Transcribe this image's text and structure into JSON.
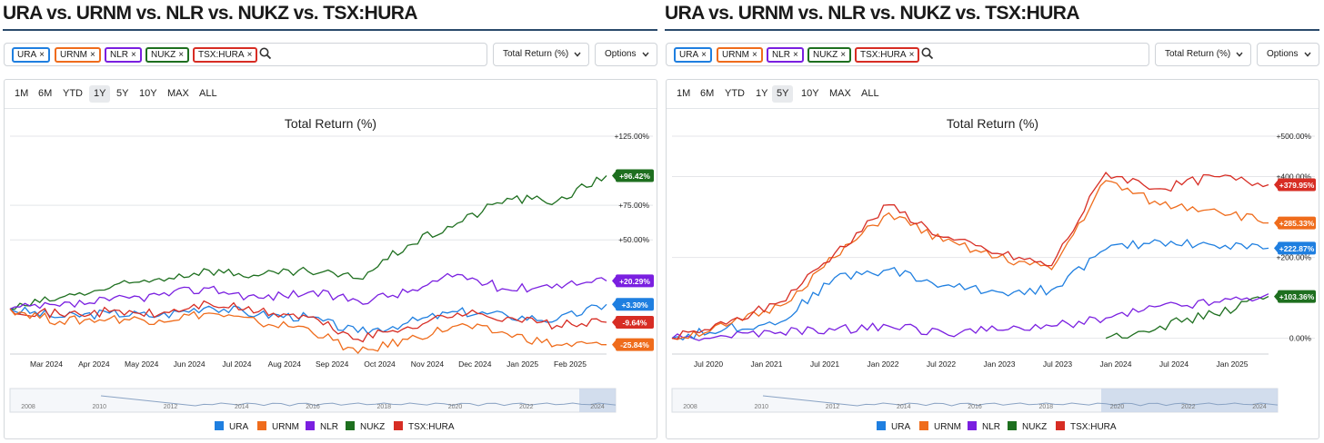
{
  "colors": {
    "URA": "#1f7fe0",
    "URNM": "#ef6c1c",
    "NLR": "#7a1fe0",
    "NUKZ": "#1e6f1f",
    "TSX:HURA": "#d72d24"
  },
  "panels": [
    {
      "title": "URA vs. URNM vs. NLR vs. NUKZ vs. TSX:HURA",
      "chips": [
        "URA",
        "URNM",
        "NLR",
        "NUKZ",
        "TSX:HURA"
      ],
      "chip_x": "×",
      "metric_dropdown": "Total Return (%)",
      "options_dropdown": "Options",
      "ranges": [
        "1M",
        "6M",
        "YTD",
        "1Y",
        "5Y",
        "10Y",
        "MAX",
        "ALL"
      ],
      "active_range": "1Y",
      "legend": [
        "URA",
        "URNM",
        "NLR",
        "NUKZ",
        "TSX:HURA"
      ]
    },
    {
      "title": "URA vs. URNM vs. NLR vs. NUKZ vs. TSX:HURA",
      "chips": [
        "URA",
        "URNM",
        "NLR",
        "NUKZ",
        "TSX:HURA"
      ],
      "chip_x": "×",
      "metric_dropdown": "Total Return (%)",
      "options_dropdown": "Options",
      "ranges": [
        "1M",
        "6M",
        "YTD",
        "1Y",
        "5Y",
        "10Y",
        "MAX",
        "ALL"
      ],
      "active_range": "5Y",
      "legend": [
        "URA",
        "URNM",
        "NLR",
        "NUKZ",
        "TSX:HURA"
      ]
    }
  ],
  "chart_data": [
    {
      "type": "line",
      "title": "Total Return (%)",
      "x_ticks": [
        "Mar 2024",
        "Apr 2024",
        "May 2024",
        "Jun 2024",
        "Jul 2024",
        "Aug 2024",
        "Sep 2024",
        "Oct 2024",
        "Nov 2024",
        "Dec 2024",
        "Jan 2025",
        "Feb 2025"
      ],
      "y_ticks": [
        "+125.00%",
        "+75.00%",
        "+50.00%"
      ],
      "ylim": [
        -30,
        125
      ],
      "x_dates": [
        "Feb 2024",
        "Mar 2024",
        "Apr 2024",
        "May 2024",
        "Jun 2024",
        "Jul 2024",
        "Aug 2024",
        "Sep 2024",
        "Oct 2024",
        "Nov 2024",
        "Dec 2024",
        "Jan 2025",
        "Feb 2025"
      ],
      "series": [
        {
          "name": "URA",
          "values": [
            0,
            -6,
            -3,
            -5,
            2,
            -4,
            -6,
            -17,
            -10,
            -2,
            -5,
            -8,
            3.3
          ],
          "end_label": "+3.30%"
        },
        {
          "name": "URNM",
          "values": [
            0,
            -9,
            -7,
            -8,
            -3,
            -10,
            -14,
            -32,
            -22,
            -12,
            -18,
            -26,
            -25.84
          ],
          "end_label": "-25.84%"
        },
        {
          "name": "NLR",
          "values": [
            0,
            2,
            6,
            10,
            15,
            8,
            12,
            6,
            12,
            25,
            14,
            18,
            20.29
          ],
          "end_label": "+20.29%"
        },
        {
          "name": "NUKZ",
          "values": [
            0,
            8,
            15,
            22,
            28,
            24,
            27,
            22,
            46,
            62,
            80,
            78,
            96.42
          ],
          "end_label": "+96.42%"
        },
        {
          "name": "TSX:HURA",
          "values": [
            0,
            -4,
            -2,
            -4,
            4,
            -2,
            -6,
            -22,
            -13,
            -3,
            -6,
            -12,
            -9.64
          ],
          "end_label": "-9.64%"
        }
      ],
      "navigator_ticks": [
        "2008",
        "2010",
        "2012",
        "2014",
        "2016",
        "2018",
        "2020",
        "2022",
        "2024"
      ]
    },
    {
      "type": "line",
      "title": "Total Return (%)",
      "x_ticks": [
        "Jul 2020",
        "Jan 2021",
        "Jul 2021",
        "Jan 2022",
        "Jul 2022",
        "Jan 2023",
        "Jul 2023",
        "Jan 2024",
        "Jul 2024",
        "Jan 2025"
      ],
      "y_ticks": [
        "+500.00%",
        "+400.00%",
        "+200.00%",
        "0.00%"
      ],
      "ylim": [
        -30,
        500
      ],
      "x_dates": [
        "Feb 2020",
        "Jul 2020",
        "Jan 2021",
        "Jul 2021",
        "Jan 2022",
        "Jul 2022",
        "Jan 2023",
        "Jul 2023",
        "Jan 2024",
        "Jul 2024",
        "Jan 2025",
        "Feb 2025"
      ],
      "series": [
        {
          "name": "URA",
          "values": [
            0,
            25,
            40,
            150,
            170,
            130,
            115,
            120,
            220,
            240,
            230,
            222.87
          ],
          "end_label": "+222.87%"
        },
        {
          "name": "URNM",
          "values": [
            0,
            30,
            80,
            200,
            310,
            240,
            200,
            170,
            390,
            330,
            320,
            285.33
          ],
          "end_label": "+285.33%"
        },
        {
          "name": "NLR",
          "values": [
            0,
            5,
            15,
            20,
            30,
            15,
            20,
            30,
            50,
            80,
            90,
            110
          ],
          "end_label": ""
        },
        {
          "name": "NUKZ",
          "values": [
            null,
            null,
            null,
            null,
            null,
            null,
            null,
            null,
            0,
            30,
            60,
            103.36
          ],
          "end_label": "+103.36%"
        },
        {
          "name": "TSX:HURA",
          "values": [
            0,
            35,
            90,
            210,
            330,
            250,
            210,
            180,
            410,
            370,
            400,
            379.95
          ],
          "end_label": "+379.95%"
        }
      ],
      "navigator_ticks": [
        "2008",
        "2010",
        "2012",
        "2014",
        "2016",
        "2018",
        "2020",
        "2022",
        "2024"
      ]
    }
  ]
}
